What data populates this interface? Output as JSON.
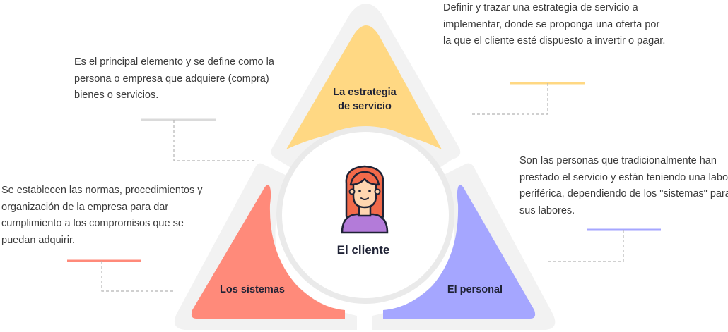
{
  "center": {
    "label": "El cliente",
    "icon": "woman-avatar-icon"
  },
  "segments": {
    "strategy": {
      "label_line1": "La estrategia",
      "label_line2": "de servicio",
      "color": "#FFD883"
    },
    "systems": {
      "label": "Los sistemas",
      "color": "#FF8A7A"
    },
    "staff": {
      "label": "El personal",
      "color": "#A5A6FF"
    }
  },
  "descriptions": {
    "strategy": "Definir y trazar una estrategia de servicio a implementar, donde se proponga una oferta por la que el cliente esté dispuesto a invertir o pagar.",
    "client": "Es el principal elemento y se define como la persona o empresa que adquiere (compra) bienes o servicios.",
    "staff": "Son las personas que tradicionalmente han prestado el servicio y están teniendo una labor periférica, dependiendo de los \"sistemas\" para sus labores.",
    "systems": "Se establecen las normas, procedimientos y organización de la empresa para dar cumplimiento a los compromisos que se puedan adquirir."
  },
  "colors": {
    "outline_gray": "#F1F1F1",
    "ring": "#EAEAEA",
    "text": "#3B3B3B",
    "label": "#1F2235"
  }
}
